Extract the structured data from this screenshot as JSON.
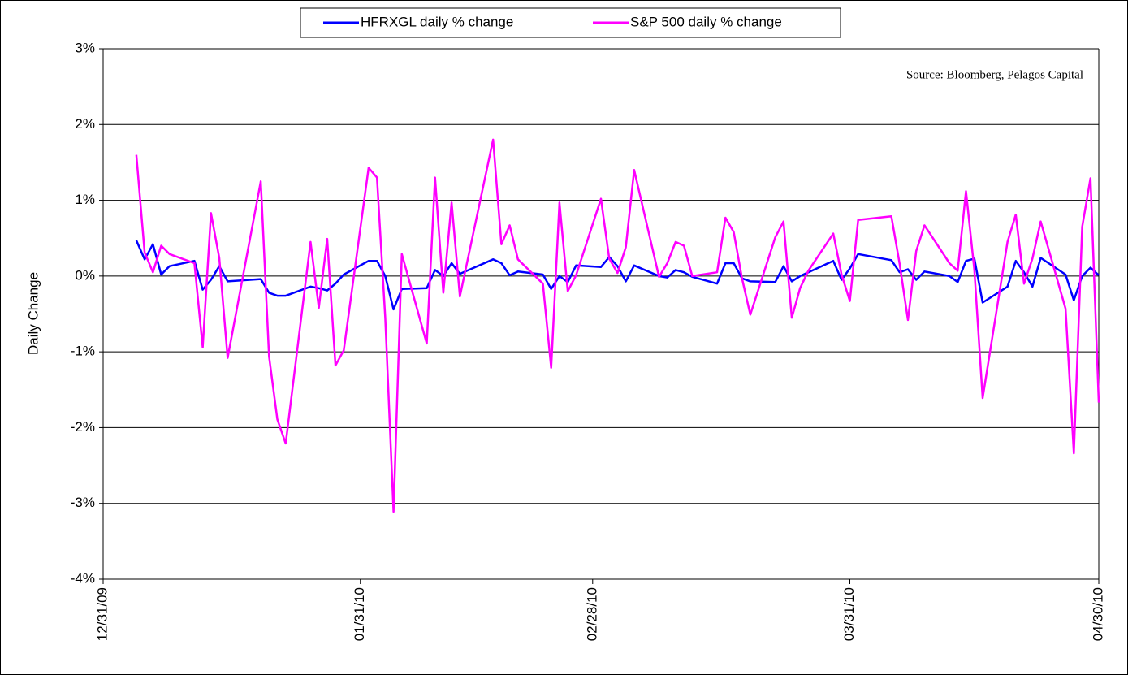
{
  "chart_data": {
    "type": "line",
    "annotation": "Source: Bloomberg, Pelagos Capital",
    "y_label": "Daily Change",
    "legend": "top",
    "grid": true,
    "xlim": [
      "12/31/09",
      "04/30/10"
    ],
    "xticks": [
      "12/31/09",
      "01/31/10",
      "02/28/10",
      "03/31/10",
      "04/30/10"
    ],
    "ylim": [
      -4,
      3
    ],
    "yticks": [
      {
        "value": -4,
        "label": "-4%"
      },
      {
        "value": -3,
        "label": "-3%"
      },
      {
        "value": -2,
        "label": "-2%"
      },
      {
        "value": -1,
        "label": "-1%"
      },
      {
        "value": 0,
        "label": "0%"
      },
      {
        "value": 1,
        "label": "1%"
      },
      {
        "value": 2,
        "label": "2%"
      },
      {
        "value": 3,
        "label": "3%"
      }
    ],
    "x": [
      "01/04/10",
      "01/05/10",
      "01/06/10",
      "01/07/10",
      "01/08/10",
      "01/11/10",
      "01/12/10",
      "01/13/10",
      "01/14/10",
      "01/15/10",
      "01/19/10",
      "01/20/10",
      "01/21/10",
      "01/22/10",
      "01/25/10",
      "01/26/10",
      "01/27/10",
      "01/28/10",
      "01/29/10",
      "02/01/10",
      "02/02/10",
      "02/03/10",
      "02/04/10",
      "02/05/10",
      "02/08/10",
      "02/09/10",
      "02/10/10",
      "02/11/10",
      "02/12/10",
      "02/16/10",
      "02/17/10",
      "02/18/10",
      "02/19/10",
      "02/22/10",
      "02/23/10",
      "02/24/10",
      "02/25/10",
      "02/26/10",
      "03/01/10",
      "03/02/10",
      "03/03/10",
      "03/04/10",
      "03/05/10",
      "03/08/10",
      "03/09/10",
      "03/10/10",
      "03/11/10",
      "03/12/10",
      "03/15/10",
      "03/16/10",
      "03/17/10",
      "03/18/10",
      "03/19/10",
      "03/22/10",
      "03/23/10",
      "03/24/10",
      "03/25/10",
      "03/26/10",
      "03/29/10",
      "03/30/10",
      "03/31/10",
      "04/01/10",
      "04/05/10",
      "04/06/10",
      "04/07/10",
      "04/08/10",
      "04/09/10",
      "04/12/10",
      "04/13/10",
      "04/14/10",
      "04/15/10",
      "04/16/10",
      "04/19/10",
      "04/20/10",
      "04/21/10",
      "04/22/10",
      "04/23/10",
      "04/26/10",
      "04/27/10",
      "04/28/10",
      "04/29/10",
      "04/30/10"
    ],
    "series": [
      {
        "name": "HFRXGL daily % change",
        "color": "#0000ff",
        "values": [
          0.47,
          0.22,
          0.42,
          0.02,
          0.13,
          0.2,
          -0.18,
          -0.05,
          0.13,
          -0.07,
          -0.04,
          -0.22,
          -0.26,
          -0.26,
          -0.14,
          -0.16,
          -0.19,
          -0.1,
          0.02,
          0.2,
          0.2,
          0.0,
          -0.44,
          -0.17,
          -0.16,
          0.08,
          0.0,
          0.17,
          0.03,
          0.22,
          0.17,
          0.01,
          0.06,
          0.02,
          -0.17,
          0.0,
          -0.08,
          0.14,
          0.12,
          0.25,
          0.13,
          -0.07,
          0.14,
          0.0,
          -0.02,
          0.08,
          0.05,
          -0.01,
          -0.1,
          0.17,
          0.17,
          -0.03,
          -0.07,
          -0.08,
          0.13,
          -0.07,
          0.0,
          0.05,
          0.2,
          -0.05,
          0.1,
          0.29,
          0.21,
          0.05,
          0.09,
          -0.05,
          0.06,
          0.0,
          -0.08,
          0.2,
          0.23,
          -0.35,
          -0.14,
          0.2,
          0.05,
          -0.14,
          0.24,
          0.02,
          -0.32,
          0.0,
          0.11,
          0.01
        ]
      },
      {
        "name": "S&P 500 daily % change",
        "color": "#ff00ff",
        "values": [
          1.6,
          0.31,
          0.05,
          0.4,
          0.29,
          0.17,
          -0.94,
          0.83,
          0.24,
          -1.08,
          1.25,
          -1.06,
          -1.89,
          -2.21,
          0.45,
          -0.42,
          0.49,
          -1.18,
          -0.98,
          1.43,
          1.3,
          -0.55,
          -3.11,
          0.29,
          -0.89,
          1.3,
          -0.22,
          0.97,
          -0.27,
          1.8,
          0.42,
          0.67,
          0.22,
          -0.1,
          -1.21,
          0.97,
          -0.2,
          0.01,
          1.02,
          0.23,
          0.04,
          0.38,
          1.4,
          -0.01,
          0.17,
          0.45,
          0.4,
          0.0,
          0.05,
          0.77,
          0.58,
          -0.03,
          -0.51,
          0.51,
          0.72,
          -0.55,
          -0.16,
          0.07,
          0.56,
          0.02,
          -0.33,
          0.74,
          0.79,
          0.16,
          -0.58,
          0.33,
          0.67,
          0.17,
          0.07,
          1.12,
          0.08,
          -1.61,
          0.45,
          0.81,
          -0.1,
          0.23,
          0.72,
          -0.43,
          -2.34,
          0.65,
          1.29,
          -1.67
        ]
      }
    ]
  }
}
